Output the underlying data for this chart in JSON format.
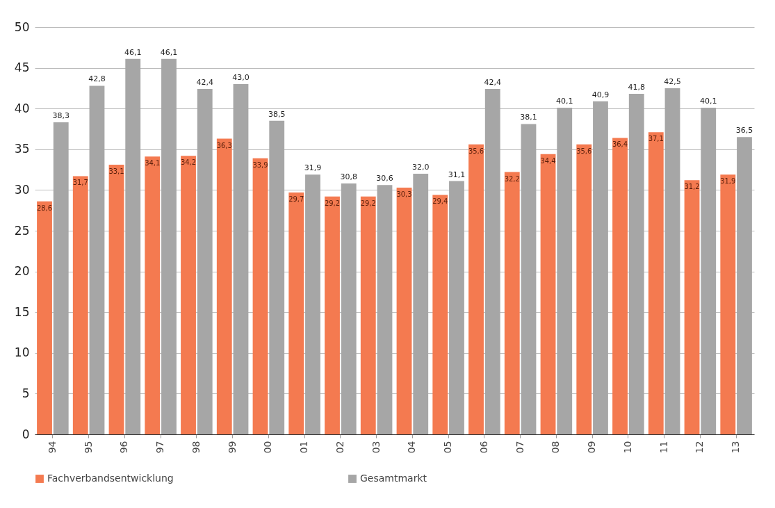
{
  "chart_data": {
    "type": "bar",
    "categories": [
      "94",
      "95",
      "96",
      "97",
      "98",
      "99",
      "00",
      "01",
      "02",
      "03",
      "04",
      "05",
      "06",
      "07",
      "08",
      "09",
      "10",
      "11",
      "12",
      "13"
    ],
    "series": [
      {
        "name": "Fachverbandsentwicklung",
        "color": "#f47a50",
        "values": [
          28.6,
          31.7,
          33.1,
          34.1,
          34.2,
          36.3,
          33.9,
          29.7,
          29.2,
          29.2,
          30.3,
          29.4,
          35.6,
          32.2,
          34.4,
          35.6,
          36.4,
          37.1,
          31.2,
          31.9
        ],
        "value_labels": [
          "28,6",
          "31,7",
          "33,1",
          "34,1",
          "34,2",
          "36,3",
          "33,9",
          "29,7",
          "29,2",
          "29,2",
          "30,3",
          "29,4",
          "35,6",
          "32,2",
          "34,4",
          "35,6",
          "36,4",
          "37,1",
          "31,2",
          "31,9"
        ]
      },
      {
        "name": "Gesamtmarkt",
        "color": "#a6a6a6",
        "values": [
          38.3,
          42.8,
          46.1,
          46.1,
          42.4,
          43.0,
          38.5,
          31.9,
          30.8,
          30.6,
          32.0,
          31.1,
          42.4,
          38.1,
          40.1,
          40.9,
          41.8,
          42.5,
          40.1,
          36.5
        ],
        "value_labels": [
          "38,3",
          "42,8",
          "46,1",
          "46,1",
          "42,4",
          "43,0",
          "38,5",
          "31,9",
          "30,8",
          "30,6",
          "32,0",
          "31,1",
          "42,4",
          "38,1",
          "40,1",
          "40,9",
          "41,8",
          "42,5",
          "40,1",
          "36,5"
        ]
      }
    ],
    "ylim": [
      0,
      50
    ],
    "yticks": [
      0,
      5,
      10,
      15,
      20,
      25,
      30,
      35,
      40,
      45,
      50
    ],
    "grid": "y",
    "legend": "bottom"
  }
}
